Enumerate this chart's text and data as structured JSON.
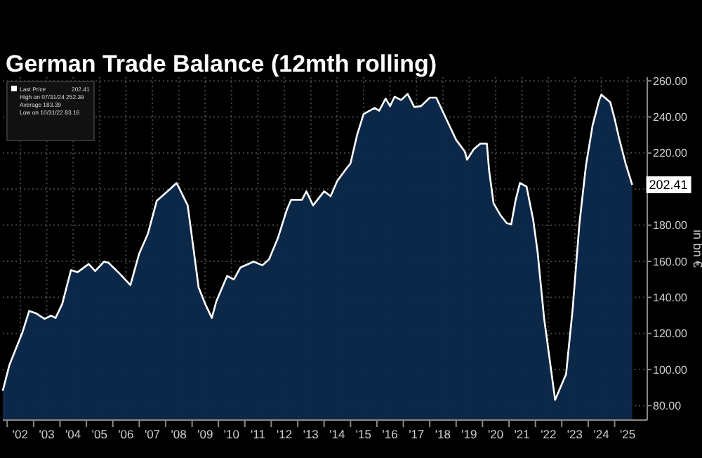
{
  "chart_data": {
    "type": "area",
    "title": "German Trade Balance (12mth rolling)",
    "ylabel": "in bn €",
    "x": [
      "2001-11",
      "2002-02",
      "2002-08",
      "2002-11",
      "2003-02",
      "2003-06",
      "2003-09",
      "2003-11",
      "2004-02",
      "2004-06",
      "2004-09",
      "2005-02",
      "2005-05",
      "2005-09",
      "2005-11",
      "2006-04",
      "2006-09",
      "2007-01",
      "2007-05",
      "2007-09",
      "2007-12",
      "2008-03",
      "2008-06",
      "2008-11",
      "2009-01",
      "2009-04",
      "2009-07",
      "2009-10",
      "2009-12",
      "2010-05",
      "2010-08",
      "2010-11",
      "2011-05",
      "2011-09",
      "2011-12",
      "2012-04",
      "2012-08",
      "2012-10",
      "2013-03",
      "2013-05",
      "2013-08",
      "2014-01",
      "2014-04",
      "2014-07",
      "2014-11",
      "2015-01",
      "2015-04",
      "2015-07",
      "2015-12",
      "2016-02",
      "2016-05",
      "2016-07",
      "2016-09",
      "2016-12",
      "2017-03",
      "2017-06",
      "2017-09",
      "2018-01",
      "2018-04",
      "2018-08",
      "2019-01",
      "2019-05",
      "2019-06",
      "2019-09",
      "2019-12",
      "2020-03",
      "2020-04",
      "2020-06",
      "2020-09",
      "2020-12",
      "2021-02",
      "2021-04",
      "2021-06",
      "2021-09",
      "2021-12",
      "2022-02",
      "2022-05",
      "2022-10",
      "2023-03",
      "2023-06",
      "2023-09",
      "2023-12",
      "2024-03",
      "2024-06",
      "2024-07",
      "2024-11",
      "2025-01",
      "2025-03",
      "2025-06",
      "2025-09"
    ],
    "series": [
      {
        "name": "Last Price",
        "color": "#ffffff",
        "values": [
          88.3,
          102.6,
          120.8,
          132.5,
          131.2,
          128.1,
          129.9,
          128.6,
          136.4,
          155.1,
          154,
          158.5,
          154.6,
          159.8,
          159.2,
          153.3,
          146.8,
          164.4,
          175.3,
          193.6,
          196.8,
          200,
          203.4,
          191,
          172.8,
          145.5,
          136.4,
          128.6,
          137.7,
          151.9,
          149.9,
          156.6,
          159.8,
          157.8,
          161.1,
          172.8,
          188.3,
          194.1,
          194.1,
          198.8,
          191,
          198.8,
          196.1,
          204.5,
          211.2,
          214.3,
          229.9,
          241.6,
          245,
          243.5,
          250.2,
          246,
          251.2,
          249.4,
          252.8,
          245.5,
          246,
          250.7,
          250.7,
          240.3,
          227.3,
          220.8,
          216.3,
          222.1,
          225.2,
          225.2,
          210.4,
          192.2,
          185.8,
          181.1,
          180.5,
          193.6,
          203.4,
          201.4,
          183.2,
          165,
          128.6,
          83.16,
          97.4,
          133.8,
          180.5,
          213,
          235.1,
          249.4,
          252.39,
          248.2,
          239,
          228.6,
          214.3,
          202.41
        ]
      }
    ],
    "xlim": [
      "2001-11-01",
      "2026-03-28"
    ],
    "xticks": [
      {
        "value": "2002-07",
        "label": "'02"
      },
      {
        "value": "2003-07",
        "label": "'03"
      },
      {
        "value": "2004-07",
        "label": "'04"
      },
      {
        "value": "2005-07",
        "label": "'05"
      },
      {
        "value": "2006-07",
        "label": "'06"
      },
      {
        "value": "2007-07",
        "label": "'07"
      },
      {
        "value": "2008-07",
        "label": "'08"
      },
      {
        "value": "2009-07",
        "label": "'09"
      },
      {
        "value": "2010-07",
        "label": "'10"
      },
      {
        "value": "2011-07",
        "label": "'11"
      },
      {
        "value": "2012-07",
        "label": "'12"
      },
      {
        "value": "2013-07",
        "label": "'13"
      },
      {
        "value": "2014-07",
        "label": "'14"
      },
      {
        "value": "2015-07",
        "label": "'15"
      },
      {
        "value": "2016-07",
        "label": "'16"
      },
      {
        "value": "2017-07",
        "label": "'17"
      },
      {
        "value": "2018-07",
        "label": "'18"
      },
      {
        "value": "2019-07",
        "label": "'19"
      },
      {
        "value": "2020-07",
        "label": "'20"
      },
      {
        "value": "2021-07",
        "label": "'21"
      },
      {
        "value": "2022-07",
        "label": "'22"
      },
      {
        "value": "2023-07",
        "label": "'23"
      },
      {
        "value": "2024-07",
        "label": "'24"
      },
      {
        "value": "2025-07",
        "label": "'25"
      }
    ],
    "ylim": [
      72,
      262
    ],
    "yticks": [
      {
        "value": 80,
        "label": "80.00"
      },
      {
        "value": 100,
        "label": "100.00"
      },
      {
        "value": 120,
        "label": "120.00"
      },
      {
        "value": 140,
        "label": "140.00"
      },
      {
        "value": 160,
        "label": "160.00"
      },
      {
        "value": 180,
        "label": "180.00"
      },
      {
        "value": 200,
        "label": null
      },
      {
        "value": 220,
        "label": "220.00"
      },
      {
        "value": 240,
        "label": "240.00"
      },
      {
        "value": 260,
        "label": "260.00"
      }
    ],
    "grid": true,
    "legend": "top left",
    "annotations": [
      "202.41",
      "High on 07/31/24 252.39",
      "Average 183.39",
      "Low on 10/31/22 83.16",
      {
        "text": "202.41",
        "x": "2025-09",
        "y": 202.41
      }
    ]
  }
}
